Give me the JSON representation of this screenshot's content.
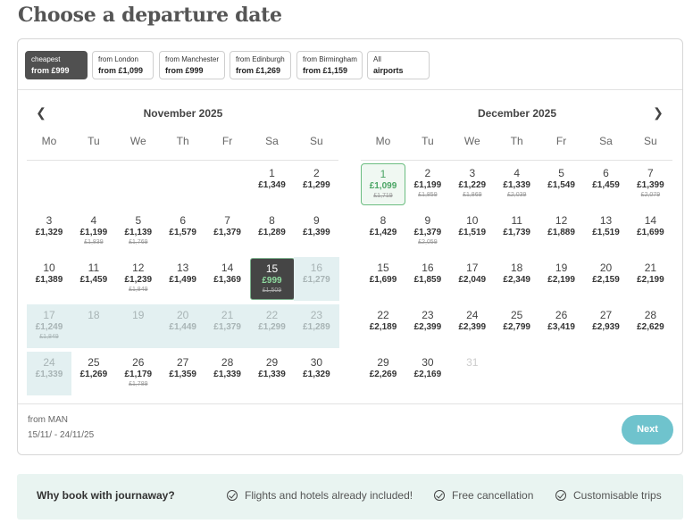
{
  "page": {
    "title": "Choose a departure date"
  },
  "filters": [
    {
      "line1": "cheapest",
      "line2": "from £999",
      "active": true
    },
    {
      "line1": "from London",
      "line2": "from £1,099",
      "active": false
    },
    {
      "line1": "from Manchester",
      "line2": "from £999",
      "active": false
    },
    {
      "line1": "from Edinburgh",
      "line2": "from £1,269",
      "active": false
    },
    {
      "line1": "from Birmingham",
      "line2": "from £1,159",
      "active": false
    },
    {
      "line1": "All",
      "line2": "airports",
      "active": false
    }
  ],
  "icons": {
    "prev": "chevron-left-icon",
    "next": "chevron-right-icon",
    "check": "check-circle-icon"
  },
  "weekdays": [
    "Mo",
    "Tu",
    "We",
    "Th",
    "Fr",
    "Sa",
    "Su"
  ],
  "months": [
    {
      "title": "November 2025",
      "start_offset": 5,
      "days": [
        {
          "d": "1",
          "price": "£1,349"
        },
        {
          "d": "2",
          "price": "£1,299"
        },
        {
          "d": "3",
          "price": "£1,329"
        },
        {
          "d": "4",
          "price": "£1,199",
          "old": "£1,839"
        },
        {
          "d": "5",
          "price": "£1,139",
          "old": "£1,769"
        },
        {
          "d": "6",
          "price": "£1,579"
        },
        {
          "d": "7",
          "price": "£1,379"
        },
        {
          "d": "8",
          "price": "£1,289"
        },
        {
          "d": "9",
          "price": "£1,399"
        },
        {
          "d": "10",
          "price": "£1,389"
        },
        {
          "d": "11",
          "price": "£1,459"
        },
        {
          "d": "12",
          "price": "£1,239",
          "old": "£1,849"
        },
        {
          "d": "13",
          "price": "£1,499"
        },
        {
          "d": "14",
          "price": "£1,369"
        },
        {
          "d": "15",
          "price": "£999",
          "old": "£1,509",
          "state": "selected"
        },
        {
          "d": "16",
          "price": "£1,279",
          "state": "range"
        },
        {
          "d": "17",
          "price": "£1,249",
          "old": "£1,849",
          "state": "range"
        },
        {
          "d": "18",
          "price": "",
          "state": "range"
        },
        {
          "d": "19",
          "price": "",
          "state": "range"
        },
        {
          "d": "20",
          "price": "£1,449",
          "state": "range"
        },
        {
          "d": "21",
          "price": "£1,379",
          "state": "range"
        },
        {
          "d": "22",
          "price": "£1,299",
          "state": "range"
        },
        {
          "d": "23",
          "price": "£1,289",
          "state": "range"
        },
        {
          "d": "24",
          "price": "£1,339",
          "state": "range"
        },
        {
          "d": "25",
          "price": "£1,269"
        },
        {
          "d": "26",
          "price": "£1,179",
          "old": "£1,789"
        },
        {
          "d": "27",
          "price": "£1,359"
        },
        {
          "d": "28",
          "price": "£1,339"
        },
        {
          "d": "29",
          "price": "£1,339"
        },
        {
          "d": "30",
          "price": "£1,329"
        }
      ]
    },
    {
      "title": "December 2025",
      "start_offset": 0,
      "days": [
        {
          "d": "1",
          "price": "£1,099",
          "old": "£1,719",
          "state": "cheapest"
        },
        {
          "d": "2",
          "price": "£1,199",
          "old": "£1,859"
        },
        {
          "d": "3",
          "price": "£1,229",
          "old": "£1,869"
        },
        {
          "d": "4",
          "price": "£1,339",
          "old": "£2,039"
        },
        {
          "d": "5",
          "price": "£1,549"
        },
        {
          "d": "6",
          "price": "£1,459"
        },
        {
          "d": "7",
          "price": "£1,399",
          "old": "£2,079"
        },
        {
          "d": "8",
          "price": "£1,429"
        },
        {
          "d": "9",
          "price": "£1,379",
          "old": "£2,059"
        },
        {
          "d": "10",
          "price": "£1,519"
        },
        {
          "d": "11",
          "price": "£1,739"
        },
        {
          "d": "12",
          "price": "£1,889"
        },
        {
          "d": "13",
          "price": "£1,519"
        },
        {
          "d": "14",
          "price": "£1,699"
        },
        {
          "d": "15",
          "price": "£1,699"
        },
        {
          "d": "16",
          "price": "£1,859"
        },
        {
          "d": "17",
          "price": "£2,049"
        },
        {
          "d": "18",
          "price": "£2,349"
        },
        {
          "d": "19",
          "price": "£2,199"
        },
        {
          "d": "20",
          "price": "£2,159"
        },
        {
          "d": "21",
          "price": "£2,199"
        },
        {
          "d": "22",
          "price": "£2,189"
        },
        {
          "d": "23",
          "price": "£2,399"
        },
        {
          "d": "24",
          "price": "£2,399"
        },
        {
          "d": "25",
          "price": "£2,799"
        },
        {
          "d": "26",
          "price": "£3,419"
        },
        {
          "d": "27",
          "price": "£2,939"
        },
        {
          "d": "28",
          "price": "£2,629"
        },
        {
          "d": "29",
          "price": "£2,269"
        },
        {
          "d": "30",
          "price": "£2,169"
        },
        {
          "d": "31",
          "price": "",
          "state": "na"
        }
      ]
    }
  ],
  "footer": {
    "route": "from MAN",
    "dates": "15/11/ - 24/11/25",
    "next_label": "Next"
  },
  "why": {
    "title": "Why book with journaway?",
    "items": [
      "Flights and hotels already included!",
      "Free cancellation",
      "Customisable trips"
    ]
  },
  "colors": {
    "accent": "#6fc3cd",
    "selected": "#454545",
    "range": "#e3f0f1",
    "cheapest": "#4aa564"
  }
}
